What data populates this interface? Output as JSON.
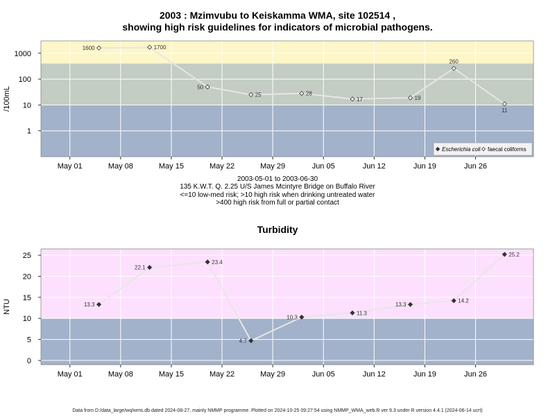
{
  "header": {
    "title_line1": "2003 : Mzimvubu to Keiskamma WMA, site 102514 ,",
    "title_line2": "showing high risk guidelines for indicators of microbial pathogens."
  },
  "middle": {
    "line1": "2003-05-01 to 2003-06-30",
    "line2": "135 K.W.T. Q. 2.25 U/S James Mcintyre Bridge on Buffalo River",
    "line3": "<=10 low-med risk; >10 high risk when drinking untreated water",
    "line4": ">400 high risk from full or partial contact",
    "turbidity_title": "Turbidity"
  },
  "footer": {
    "text": "Data from D:/data_large/wq/wms.db dated 2024-08-27, mainly NMMP programme. Plotted on 2024-10-25 09:27:54 using NMMP_WMA_web.R ver 9.3 under R version 4.4.1 (2024-06-14 ucrt)"
  },
  "colors": {
    "high_risk_band": "#fcf6c8",
    "mid_band": "#c3cdc3",
    "low_band": "#a2b2ca",
    "turb_high_band": "#fde0fd",
    "turb_low_band": "#a2b2ca",
    "series_line": "#e6e6e6"
  },
  "chart_data": [
    {
      "type": "line",
      "title": "2003 : Mzimvubu to Keiskamma WMA, site 102514 , showing high risk guidelines for indicators of microbial pathogens.",
      "ylabel": "/100mL",
      "y_scale": "log",
      "ylim": [
        0.1,
        3000
      ],
      "y_ticks": [
        1,
        10,
        100,
        1000
      ],
      "y_tick_labels": [
        "1",
        "10",
        "100",
        "1000"
      ],
      "xlim": [
        "2003-04-27",
        "2003-07-04"
      ],
      "x_ticks": [
        "2003-05-01",
        "2003-05-08",
        "2003-05-15",
        "2003-05-22",
        "2003-05-29",
        "2003-06-05",
        "2003-06-12",
        "2003-06-19",
        "2003-06-26"
      ],
      "x_tick_labels": [
        "May 01",
        "May 08",
        "May 15",
        "May 22",
        "May 29",
        "Jun 05",
        "Jun 12",
        "Jun 19",
        "Jun 26"
      ],
      "bands": [
        {
          "from": 400,
          "to": 3000,
          "color": "#fcf6c8"
        },
        {
          "from": 10,
          "to": 400,
          "color": "#c3cdc3"
        },
        {
          "from": 0.1,
          "to": 10,
          "color": "#a2b2ca"
        }
      ],
      "grid": true,
      "legend": {
        "position": "bottom-right",
        "entries": [
          "Escherichia coli",
          "faecal coliforms"
        ]
      },
      "series": [
        {
          "name": "faecal coliforms",
          "marker": "open-diamond",
          "points": [
            {
              "x": "2003-05-05",
              "y": 1600,
              "label": "1600"
            },
            {
              "x": "2003-05-12",
              "y": 1700,
              "label": "1700"
            },
            {
              "x": "2003-05-20",
              "y": 50,
              "label": "50"
            },
            {
              "x": "2003-05-26",
              "y": 25,
              "label": "25"
            },
            {
              "x": "2003-06-02",
              "y": 28,
              "label": "28"
            },
            {
              "x": "2003-06-09",
              "y": 17,
              "label": "17"
            },
            {
              "x": "2003-06-17",
              "y": 19,
              "label": "19"
            },
            {
              "x": "2003-06-23",
              "y": 260,
              "label": "260"
            },
            {
              "x": "2003-06-30",
              "y": 11,
              "label": "11"
            }
          ]
        }
      ]
    },
    {
      "type": "line",
      "title": "Turbidity",
      "ylabel": "NTU",
      "ylim": [
        -1,
        26.5
      ],
      "y_ticks": [
        0,
        5,
        10,
        15,
        20,
        25
      ],
      "y_tick_labels": [
        "0",
        "5",
        "10",
        "15",
        "20",
        "25"
      ],
      "xlim": [
        "2003-04-27",
        "2003-07-04"
      ],
      "x_ticks": [
        "2003-05-01",
        "2003-05-08",
        "2003-05-15",
        "2003-05-22",
        "2003-05-29",
        "2003-06-05",
        "2003-06-12",
        "2003-06-19",
        "2003-06-26"
      ],
      "x_tick_labels": [
        "May 01",
        "May 08",
        "May 15",
        "May 22",
        "May 29",
        "Jun 05",
        "Jun 12",
        "Jun 19",
        "Jun 26"
      ],
      "bands": [
        {
          "from": 10,
          "to": 26.5,
          "color": "#fde0fd"
        },
        {
          "from": -1,
          "to": 10,
          "color": "#a2b2ca"
        }
      ],
      "grid": true,
      "series": [
        {
          "marker": "filled-diamond",
          "points": [
            {
              "x": "2003-05-05",
              "y": 13.3,
              "label": "13.3"
            },
            {
              "x": "2003-05-12",
              "y": 22.1,
              "label": "22.1"
            },
            {
              "x": "2003-05-20",
              "y": 23.4,
              "label": "23.4"
            },
            {
              "x": "2003-05-26",
              "y": 4.7,
              "label": "4.7"
            },
            {
              "x": "2003-06-02",
              "y": 10.3,
              "label": "10.3"
            },
            {
              "x": "2003-06-09",
              "y": 11.3,
              "label": "11.3"
            },
            {
              "x": "2003-06-17",
              "y": 13.3,
              "label": "13.3"
            },
            {
              "x": "2003-06-23",
              "y": 14.2,
              "label": "14.2"
            },
            {
              "x": "2003-06-30",
              "y": 25.2,
              "label": "25.2"
            }
          ]
        }
      ]
    }
  ]
}
